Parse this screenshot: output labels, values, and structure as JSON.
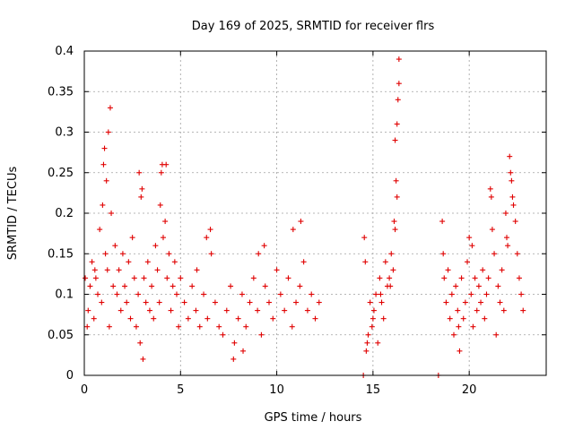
{
  "chart_data": {
    "type": "scatter",
    "title": "Day 169 of 2025, SRMTID for receiver flrs",
    "xlabel": "GPS time / hours",
    "ylabel": "SRMTID / TECUs",
    "xlim": [
      0,
      24
    ],
    "ylim": [
      0,
      0.4
    ],
    "x_ticks": [
      0,
      5,
      10,
      15,
      20
    ],
    "x_tick_labels": [
      "0",
      "5",
      "10",
      "15",
      "20"
    ],
    "y_ticks": [
      0,
      0.05,
      0.1,
      0.15,
      0.2,
      0.25,
      0.3,
      0.35,
      0.4
    ],
    "y_tick_labels": [
      "0",
      "0.05",
      "0.1",
      "0.15",
      "0.2",
      "0.25",
      "0.3",
      "0.35",
      "0.4"
    ],
    "grid": true,
    "marker": "plus",
    "color": "#e00000",
    "series": [
      {
        "x": [
          0.05,
          0.2,
          0.3,
          0.4,
          0.5,
          0.6,
          0.7,
          0.8,
          0.9,
          1.0,
          1.1,
          1.2,
          1.3,
          1.4,
          1.5,
          1.6,
          1.7,
          1.8,
          1.9,
          2.0,
          2.1,
          2.2,
          2.3,
          2.4,
          2.5,
          2.6,
          2.7,
          2.8,
          2.9,
          3.0,
          3.1,
          3.2,
          3.3,
          3.4,
          3.5,
          3.6,
          3.7,
          3.8,
          3.9,
          4.0,
          4.1,
          4.2,
          4.3,
          4.4,
          4.5,
          4.6,
          4.7,
          4.8,
          4.9,
          5.0,
          5.2,
          5.4,
          5.6,
          5.8,
          6.0,
          6.2,
          6.4,
          6.6,
          6.8,
          7.0,
          7.2,
          7.4,
          7.6,
          7.8,
          8.0,
          8.2,
          8.4,
          8.6,
          8.8,
          9.0,
          9.2,
          9.4,
          9.6,
          9.8,
          10.0,
          10.2,
          10.4,
          10.6,
          10.8,
          11.0,
          11.2,
          11.4,
          11.6,
          11.8,
          12.0,
          12.2,
          1.05,
          1.35,
          1.25,
          1.15,
          0.95,
          3.05,
          4.05,
          4.25,
          3.95,
          2.85,
          2.95,
          7.75,
          8.25,
          9.35,
          10.85,
          11.25,
          6.55,
          6.35,
          5.85,
          9.05,
          0.15,
          0.55
        ],
        "y": [
          0.12,
          0.08,
          0.11,
          0.14,
          0.07,
          0.12,
          0.1,
          0.18,
          0.09,
          0.26,
          0.15,
          0.13,
          0.06,
          0.2,
          0.11,
          0.16,
          0.1,
          0.13,
          0.08,
          0.15,
          0.11,
          0.09,
          0.14,
          0.07,
          0.17,
          0.12,
          0.06,
          0.1,
          0.04,
          0.23,
          0.12,
          0.09,
          0.14,
          0.08,
          0.11,
          0.07,
          0.16,
          0.13,
          0.09,
          0.25,
          0.17,
          0.19,
          0.12,
          0.15,
          0.08,
          0.11,
          0.14,
          0.1,
          0.06,
          0.12,
          0.09,
          0.07,
          0.11,
          0.08,
          0.06,
          0.1,
          0.07,
          0.15,
          0.09,
          0.06,
          0.05,
          0.08,
          0.11,
          0.04,
          0.07,
          0.1,
          0.06,
          0.09,
          0.12,
          0.08,
          0.05,
          0.11,
          0.09,
          0.07,
          0.13,
          0.1,
          0.08,
          0.12,
          0.06,
          0.09,
          0.11,
          0.14,
          0.08,
          0.1,
          0.07,
          0.09,
          0.28,
          0.33,
          0.3,
          0.24,
          0.21,
          0.02,
          0.26,
          0.26,
          0.21,
          0.25,
          0.22,
          0.02,
          0.03,
          0.16,
          0.18,
          0.19,
          0.18,
          0.17,
          0.13,
          0.15,
          0.06,
          0.13
        ]
      },
      {
        "x": [
          14.55,
          14.65,
          14.75,
          14.85,
          14.95,
          15.05,
          15.15,
          15.25,
          15.35,
          15.45,
          15.55,
          15.65,
          15.75,
          15.85,
          15.95,
          16.05,
          16.15,
          16.25,
          16.35,
          16.15,
          16.25,
          16.3,
          16.35,
          16.2,
          16.1,
          14.6,
          14.7,
          15.0,
          15.4,
          15.9
        ],
        "y": [
          0.17,
          0.03,
          0.05,
          0.09,
          0.06,
          0.08,
          0.1,
          0.04,
          0.12,
          0.09,
          0.07,
          0.14,
          0.11,
          0.12,
          0.15,
          0.13,
          0.18,
          0.22,
          0.39,
          0.29,
          0.31,
          0.34,
          0.36,
          0.24,
          0.19,
          0.14,
          0.04,
          0.07,
          0.1,
          0.11
        ]
      },
      {
        "x": [
          18.6,
          18.7,
          18.8,
          18.9,
          19.0,
          19.1,
          19.2,
          19.3,
          19.4,
          19.5,
          19.6,
          19.7,
          19.8,
          19.9,
          20.0,
          20.1,
          20.2,
          20.3,
          20.4,
          20.5,
          20.6,
          20.7,
          20.8,
          20.9,
          21.0,
          21.1,
          21.2,
          21.3,
          21.4,
          21.5,
          21.6,
          21.7,
          21.8,
          21.9,
          22.0,
          22.1,
          22.2,
          22.3,
          22.4,
          22.5,
          22.6,
          22.7,
          22.8,
          18.65,
          19.45,
          20.15,
          21.15,
          22.15,
          22.25,
          21.95
        ],
        "y": [
          0.19,
          0.12,
          0.09,
          0.13,
          0.07,
          0.1,
          0.05,
          0.11,
          0.08,
          0.03,
          0.12,
          0.07,
          0.09,
          0.14,
          0.17,
          0.1,
          0.06,
          0.12,
          0.08,
          0.11,
          0.09,
          0.13,
          0.07,
          0.1,
          0.12,
          0.23,
          0.18,
          0.15,
          0.05,
          0.11,
          0.09,
          0.13,
          0.08,
          0.2,
          0.16,
          0.27,
          0.24,
          0.21,
          0.19,
          0.15,
          0.12,
          0.1,
          0.08,
          0.15,
          0.06,
          0.16,
          0.22,
          0.25,
          0.22,
          0.17
        ]
      },
      {
        "x": [
          14.5,
          18.4
        ],
        "y": [
          0,
          0
        ]
      }
    ]
  }
}
